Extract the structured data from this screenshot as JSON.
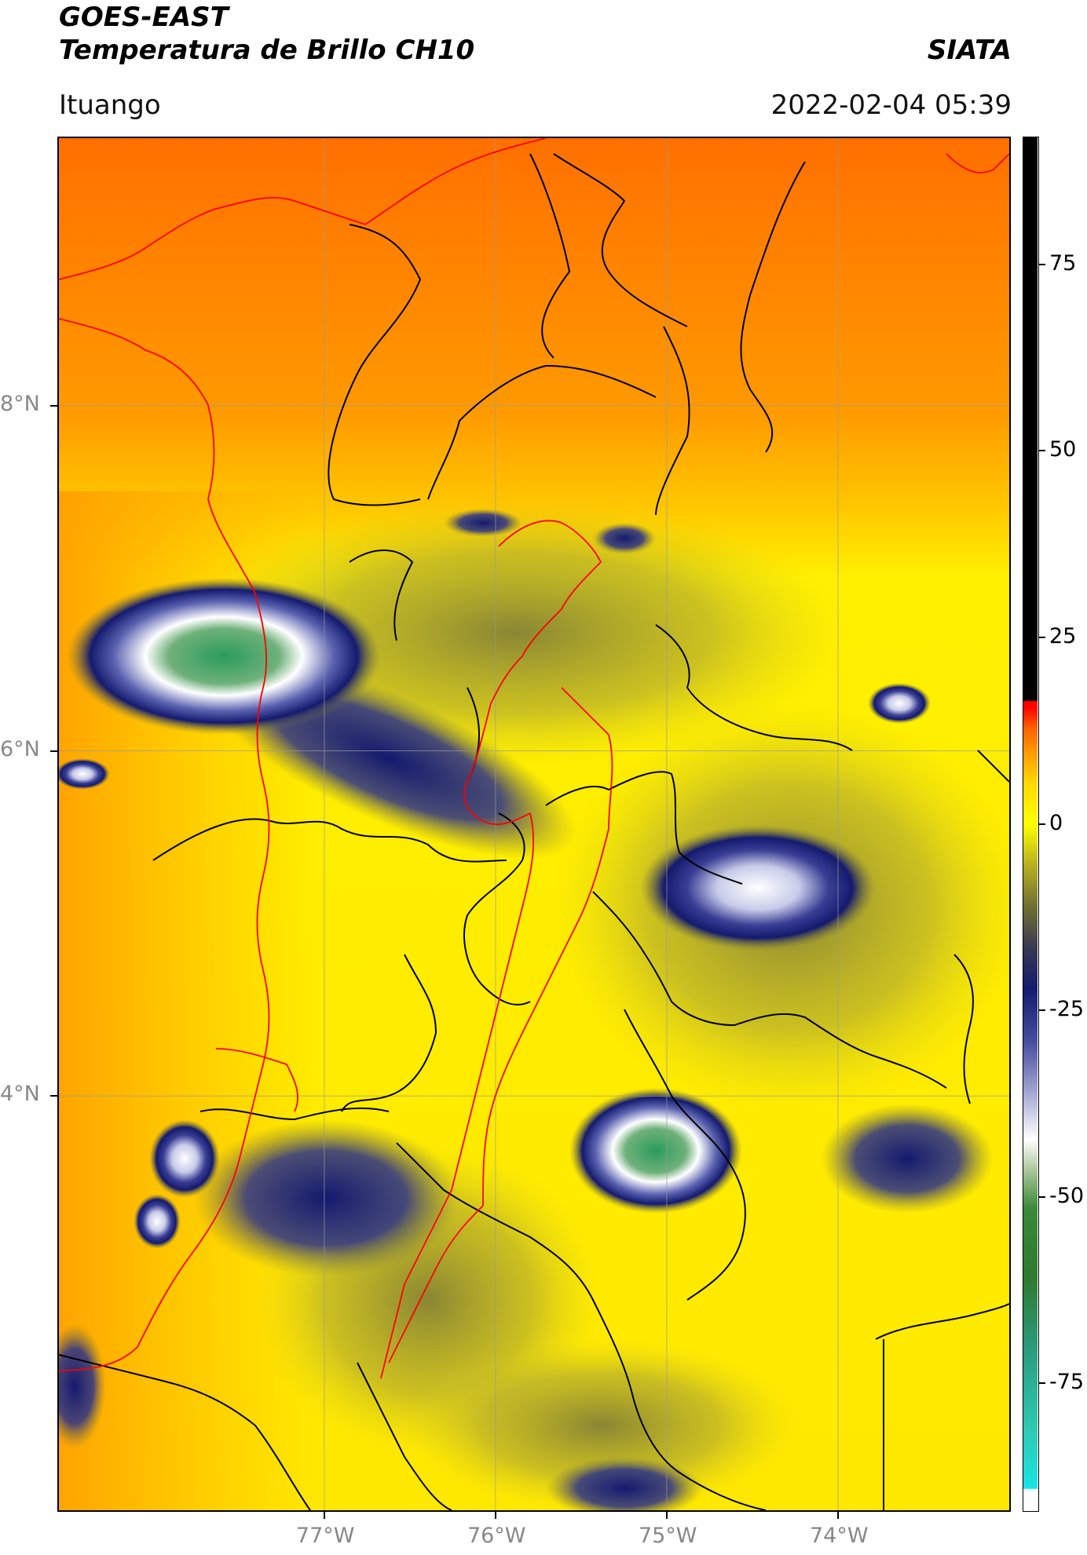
{
  "header": {
    "title_line1": "GOES-EAST",
    "title_line2": "Temperatura de Brillo CH10",
    "brand": "SIATA",
    "region": "Ituango",
    "datetime": "2022-02-04 05:39"
  },
  "map": {
    "lat_ticks": [
      {
        "label": "8°N",
        "value": 8
      },
      {
        "label": "6°N",
        "value": 6
      },
      {
        "label": "4°N",
        "value": 4
      }
    ],
    "lon_ticks": [
      {
        "label": "77°W",
        "value": -77
      },
      {
        "label": "76°W",
        "value": -76
      },
      {
        "label": "75°W",
        "value": -75
      },
      {
        "label": "74°W",
        "value": -74
      }
    ],
    "extent": {
      "lon_min": -78.55,
      "lon_max": -73.0,
      "lat_min": 1.6,
      "lat_max": 9.55
    },
    "gridlines": true,
    "colors": {
      "warm": "#ff7a00",
      "mid": "#ffec00",
      "olive": "#8f8f32",
      "navy": "#141a6e",
      "white": "#ffffff",
      "green": "#2f9a5a",
      "border_national": "#ff0000",
      "border_internal": "#000000"
    }
  },
  "colorbar": {
    "ticks": [
      {
        "label": "75",
        "value": 75
      },
      {
        "label": "50",
        "value": 50
      },
      {
        "label": "25",
        "value": 25
      },
      {
        "label": "0",
        "value": 0
      },
      {
        "label": "-25",
        "value": -25
      },
      {
        "label": "-50",
        "value": -50
      },
      {
        "label": "-75",
        "value": -75
      }
    ],
    "range": [
      -92,
      92
    ]
  }
}
